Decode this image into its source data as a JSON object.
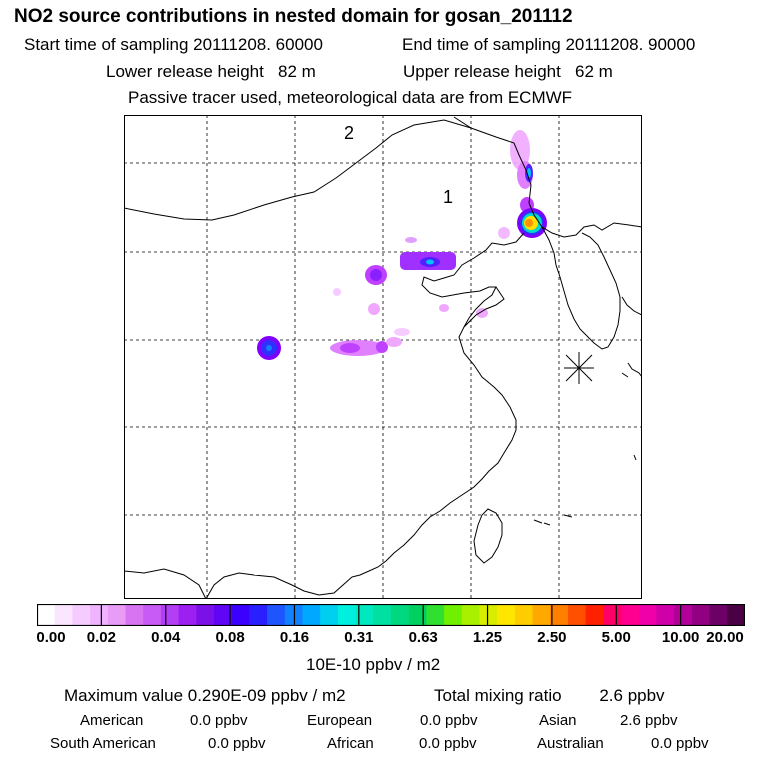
{
  "header": {
    "title": "NO2 source contributions in nested domain for gosan_201112",
    "start_label": "Start time of sampling 20111208. 60000",
    "end_label": "End time of sampling 20111208. 90000",
    "lower_label": "Lower release height   82 m",
    "upper_label": "Upper release height   62 m",
    "tracer_label": "Passive tracer used, meteorological data are from ECMWF"
  },
  "map": {
    "region_labels": [
      "2",
      "1"
    ],
    "plume_colors": {
      "light": "#f0a8ff",
      "medium": "#c040ff",
      "dark": "#8000ff",
      "blue": "#3030ff",
      "cyan": "#00c0ff",
      "teal": "#00e0b0",
      "yellow": "#ffe000",
      "orange": "#ff9000"
    }
  },
  "colorbar": {
    "unit": "10E-10 ppbv / m2",
    "tick_labels": [
      "0.00",
      "0.02",
      "0.04",
      "0.08",
      "0.16",
      "0.31",
      "0.63",
      "1.25",
      "2.50",
      "5.00",
      "10.00",
      "20.00"
    ],
    "colors": [
      "#ffffff",
      "#fbe6ff",
      "#f5ccff",
      "#efb3ff",
      "#e89cf6",
      "#d873f2",
      "#c85bf5",
      "#b33ff4",
      "#9d20f0",
      "#7c10e9",
      "#6105f5",
      "#3c00ff",
      "#2a20ff",
      "#1e55ff",
      "#1081ff",
      "#00a8ff",
      "#00cff0",
      "#00f0e0",
      "#00e8c0",
      "#00e0a0",
      "#00d880",
      "#00d060",
      "#30e030",
      "#70f000",
      "#a8f000",
      "#d8ec00",
      "#ffe600",
      "#ffcc00",
      "#ffa800",
      "#ff8000",
      "#ff5000",
      "#ff2000",
      "#ff0066",
      "#ff0090",
      "#f000a8",
      "#d000a8",
      "#b00098",
      "#900080",
      "#6c0064",
      "#4a0044"
    ]
  },
  "footer": {
    "max_label": "Maximum value  0.290E-09 ppbv / m2",
    "total_label": "Total mixing ratio        2.6 ppbv",
    "regions": [
      {
        "name": "American",
        "value": "0.0 ppbv"
      },
      {
        "name": "European",
        "value": "0.0 ppbv"
      },
      {
        "name": "Asian",
        "value": "2.6 ppbv"
      },
      {
        "name": "South American",
        "value": "0.0 ppbv"
      },
      {
        "name": "African",
        "value": "0.0 ppbv"
      },
      {
        "name": "Australian",
        "value": "0.0 ppbv"
      }
    ]
  }
}
